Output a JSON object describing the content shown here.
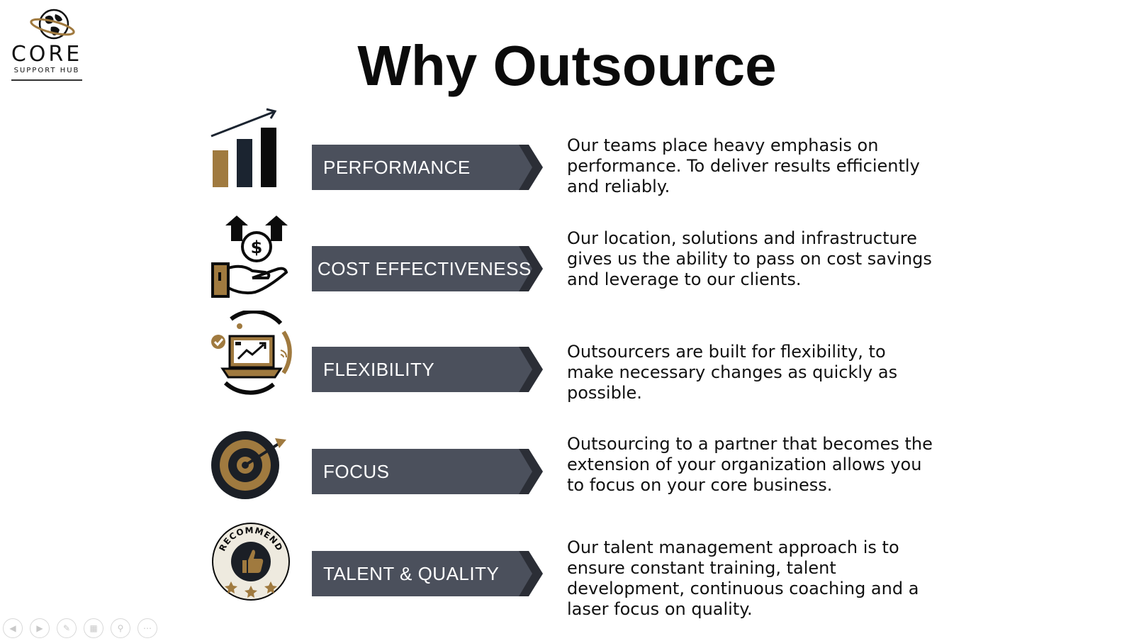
{
  "logo": {
    "word": "CORE",
    "sub": "SUPPORT HUB"
  },
  "title": "Why Outsource",
  "colors": {
    "banner": "#4b505c",
    "banner_shadow": "#2b2e36",
    "gold": "#a07a3f",
    "navy": "#1b2430"
  },
  "rows": [
    {
      "icon": "bar-chart-growth-icon",
      "label": "PERFORMANCE",
      "text": "Our teams place heavy emphasis on performance. To deliver results efficiently and reliably."
    },
    {
      "icon": "hand-coin-savings-icon",
      "label": "COST EFFECTIVENESS",
      "text": "Our location, solutions and infrastructure gives us the ability to pass on cost savings and leverage to our clients."
    },
    {
      "icon": "laptop-flexibility-icon",
      "label": "FLEXIBILITY",
      "text": "Outsourcers are built for flexibility, to make necessary changes as quickly as possible."
    },
    {
      "icon": "target-arrow-icon",
      "label": "FOCUS",
      "text": "Outsourcing to a partner that becomes the extension of your organization allows you to focus on your core business."
    },
    {
      "icon": "recommend-badge-icon",
      "label": "TALENT & QUALITY",
      "badge_text": "RECOMMEND",
      "text": "Our talent management approach is to ensure constant training, talent development, continuous coaching and a laser focus on quality."
    }
  ],
  "nav": [
    {
      "icon": "previous-icon"
    },
    {
      "icon": "next-icon"
    },
    {
      "icon": "pen-icon"
    },
    {
      "icon": "slides-grid-icon"
    },
    {
      "icon": "zoom-icon"
    },
    {
      "icon": "more-icon"
    }
  ]
}
